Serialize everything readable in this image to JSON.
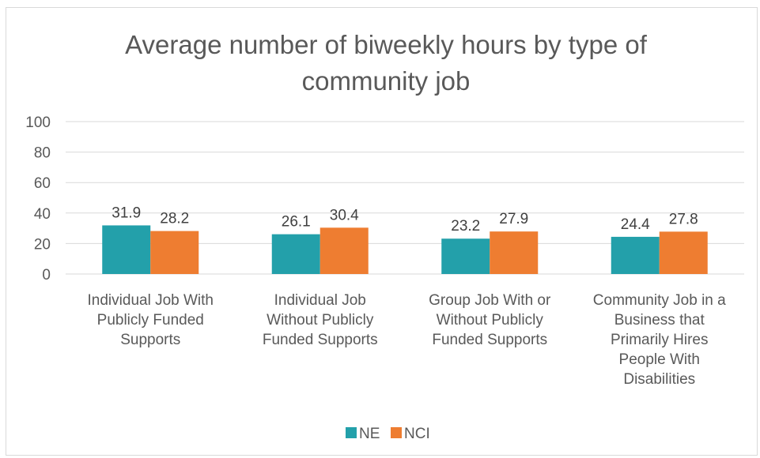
{
  "chart_data": {
    "type": "bar",
    "title_lines": [
      "Average number of biweekly hours by type of",
      "community job"
    ],
    "categories": [
      [
        "Individual Job With",
        "Publicly Funded",
        "Supports"
      ],
      [
        "Individual Job",
        "Without Publicly",
        "Funded Supports"
      ],
      [
        "Group Job With or",
        "Without Publicly",
        "Funded Supports"
      ],
      [
        "Community Job in a",
        "Business that",
        "Primarily Hires",
        "People With",
        "Disabilities"
      ]
    ],
    "series": [
      {
        "name": "NE",
        "color": "#23a0aa",
        "values": [
          31.9,
          26.1,
          23.2,
          24.4
        ]
      },
      {
        "name": "NCI",
        "color": "#ee7d31",
        "values": [
          28.2,
          30.4,
          27.9,
          27.8
        ]
      }
    ],
    "ylim": [
      0,
      100
    ],
    "yticks": [
      0,
      20,
      40,
      60,
      80,
      100
    ],
    "grid": true,
    "legend_position": "bottom"
  }
}
